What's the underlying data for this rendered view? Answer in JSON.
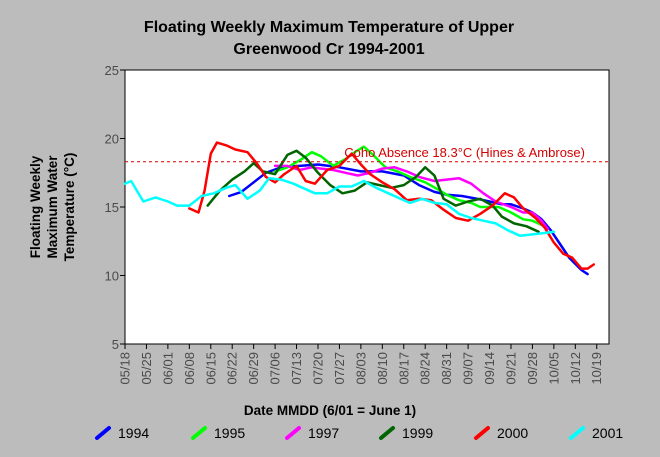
{
  "chart_data": {
    "type": "line",
    "title": [
      "Floating Weekly Maximum Temperature of Upper",
      "Greenwood Cr 1994-2001"
    ],
    "xlabel": "Date MMDD (6/01 = June 1)",
    "ylabel": [
      "Floating Weekly",
      "Maximum Water",
      "Temperature (°C)"
    ],
    "ylim": [
      5,
      25
    ],
    "yticks": [
      5,
      10,
      15,
      20,
      25
    ],
    "xlim": [
      "05/18",
      "10/23"
    ],
    "xticks": [
      "05/18",
      "05/25",
      "06/01",
      "06/08",
      "06/15",
      "06/22",
      "06/29",
      "07/06",
      "07/13",
      "07/20",
      "07/27",
      "08/03",
      "08/10",
      "08/17",
      "08/24",
      "08/31",
      "09/07",
      "09/14",
      "09/21",
      "09/28",
      "10/05",
      "10/12",
      "10/19"
    ],
    "grid": false,
    "legend_position": "bottom",
    "reference_line": {
      "y": 18.3,
      "label": "Coho Absence 18.3°C (Hines & Ambrose)",
      "color": "#d40000"
    },
    "series": [
      {
        "name": "1994",
        "color": "#0000ff",
        "points": [
          [
            "06/21",
            15.8
          ],
          [
            "06/25",
            16.1
          ],
          [
            "06/29",
            16.8
          ],
          [
            "07/03",
            17.5
          ],
          [
            "07/08",
            17.9
          ],
          [
            "07/14",
            18.0
          ],
          [
            "07/20",
            18.1
          ],
          [
            "07/27",
            17.9
          ],
          [
            "08/03",
            17.6
          ],
          [
            "08/10",
            17.6
          ],
          [
            "08/17",
            17.3
          ],
          [
            "08/22",
            16.6
          ],
          [
            "08/27",
            16.1
          ],
          [
            "08/31",
            15.9
          ],
          [
            "09/05",
            15.8
          ],
          [
            "09/10",
            15.6
          ],
          [
            "09/14",
            15.4
          ],
          [
            "09/18",
            15.2
          ],
          [
            "09/21",
            15.2
          ],
          [
            "09/25",
            14.9
          ],
          [
            "09/28",
            14.6
          ],
          [
            "10/01",
            14.1
          ],
          [
            "10/04",
            13.3
          ],
          [
            "10/07",
            12.3
          ],
          [
            "10/10",
            11.3
          ],
          [
            "10/14",
            10.4
          ],
          [
            "10/16",
            10.1
          ]
        ]
      },
      {
        "name": "1995",
        "color": "#00ff00",
        "points": [
          [
            "07/06",
            17.6
          ],
          [
            "07/10",
            17.9
          ],
          [
            "07/14",
            18.4
          ],
          [
            "07/18",
            19.0
          ],
          [
            "07/21",
            18.7
          ],
          [
            "07/25",
            18.0
          ],
          [
            "07/29",
            18.5
          ],
          [
            "08/01",
            19.0
          ],
          [
            "08/04",
            19.4
          ],
          [
            "08/07",
            18.8
          ],
          [
            "08/11",
            17.9
          ],
          [
            "08/15",
            17.6
          ],
          [
            "08/19",
            17.2
          ],
          [
            "08/24",
            16.8
          ],
          [
            "08/28",
            16.3
          ],
          [
            "08/31",
            15.9
          ],
          [
            "09/04",
            15.5
          ],
          [
            "09/08",
            15.3
          ],
          [
            "09/11",
            15.0
          ],
          [
            "09/14",
            15.0
          ],
          [
            "09/17",
            15.0
          ],
          [
            "09/21",
            14.6
          ],
          [
            "09/25",
            14.1
          ],
          [
            "09/28",
            14.0
          ],
          [
            "10/02",
            13.6
          ]
        ]
      },
      {
        "name": "1997",
        "color": "#ff00ff",
        "points": [
          [
            "07/06",
            18.0
          ],
          [
            "07/10",
            18.0
          ],
          [
            "07/14",
            17.7
          ],
          [
            "07/18",
            17.9
          ],
          [
            "07/21",
            17.8
          ],
          [
            "07/25",
            17.7
          ],
          [
            "07/29",
            17.5
          ],
          [
            "08/02",
            17.3
          ],
          [
            "08/06",
            17.5
          ],
          [
            "08/10",
            17.8
          ],
          [
            "08/14",
            17.9
          ],
          [
            "08/18",
            17.6
          ],
          [
            "08/22",
            17.2
          ],
          [
            "08/27",
            16.9
          ],
          [
            "08/31",
            17.0
          ],
          [
            "09/04",
            17.1
          ],
          [
            "09/08",
            16.7
          ],
          [
            "09/12",
            16.0
          ],
          [
            "09/16",
            15.4
          ],
          [
            "09/21",
            15.0
          ],
          [
            "09/25",
            14.6
          ],
          [
            "09/28",
            14.6
          ],
          [
            "10/01",
            14.0
          ],
          [
            "10/03",
            13.4
          ]
        ]
      },
      {
        "name": "1999",
        "color": "#006400",
        "points": [
          [
            "06/14",
            15.1
          ],
          [
            "06/18",
            16.2
          ],
          [
            "06/22",
            17.0
          ],
          [
            "06/26",
            17.6
          ],
          [
            "06/29",
            18.2
          ],
          [
            "07/02",
            17.6
          ],
          [
            "07/06",
            17.4
          ],
          [
            "07/10",
            18.8
          ],
          [
            "07/13",
            19.1
          ],
          [
            "07/16",
            18.6
          ],
          [
            "07/20",
            17.5
          ],
          [
            "07/24",
            16.6
          ],
          [
            "07/28",
            16.0
          ],
          [
            "08/01",
            16.2
          ],
          [
            "08/05",
            16.8
          ],
          [
            "08/09",
            16.6
          ],
          [
            "08/13",
            16.4
          ],
          [
            "08/17",
            16.6
          ],
          [
            "08/21",
            17.2
          ],
          [
            "08/24",
            17.9
          ],
          [
            "08/27",
            17.3
          ],
          [
            "08/30",
            15.6
          ],
          [
            "09/03",
            15.1
          ],
          [
            "09/07",
            15.4
          ],
          [
            "09/11",
            15.6
          ],
          [
            "09/15",
            15.1
          ],
          [
            "09/18",
            14.3
          ],
          [
            "09/22",
            13.8
          ],
          [
            "09/26",
            13.6
          ],
          [
            "09/30",
            13.2
          ]
        ]
      },
      {
        "name": "2000",
        "color": "#ff0000",
        "points": [
          [
            "06/08",
            14.9
          ],
          [
            "06/11",
            14.6
          ],
          [
            "06/13",
            16.2
          ],
          [
            "06/15",
            18.9
          ],
          [
            "06/17",
            19.7
          ],
          [
            "06/20",
            19.5
          ],
          [
            "06/23",
            19.2
          ],
          [
            "06/27",
            19.0
          ],
          [
            "06/30",
            18.2
          ],
          [
            "07/03",
            17.2
          ],
          [
            "07/06",
            16.8
          ],
          [
            "07/09",
            17.4
          ],
          [
            "07/13",
            18.0
          ],
          [
            "07/16",
            16.9
          ],
          [
            "07/19",
            16.7
          ],
          [
            "07/23",
            17.7
          ],
          [
            "07/27",
            18.0
          ],
          [
            "07/31",
            18.9
          ],
          [
            "08/03",
            18.1
          ],
          [
            "08/06",
            17.4
          ],
          [
            "08/10",
            16.8
          ],
          [
            "08/14",
            16.3
          ],
          [
            "08/18",
            15.5
          ],
          [
            "08/22",
            15.6
          ],
          [
            "08/26",
            15.5
          ],
          [
            "08/30",
            14.8
          ],
          [
            "09/03",
            14.2
          ],
          [
            "09/07",
            14.0
          ],
          [
            "09/11",
            14.5
          ],
          [
            "09/15",
            15.1
          ],
          [
            "09/19",
            16.0
          ],
          [
            "09/22",
            15.7
          ],
          [
            "09/25",
            14.9
          ],
          [
            "09/29",
            14.2
          ],
          [
            "10/02",
            13.5
          ],
          [
            "10/05",
            12.4
          ],
          [
            "10/08",
            11.6
          ],
          [
            "10/11",
            11.3
          ],
          [
            "10/14",
            10.5
          ],
          [
            "10/16",
            10.5
          ],
          [
            "10/18",
            10.8
          ]
        ]
      },
      {
        "name": "2001",
        "color": "#00ffff",
        "points": [
          [
            "05/18",
            16.7
          ],
          [
            "05/20",
            16.9
          ],
          [
            "05/24",
            15.4
          ],
          [
            "05/28",
            15.7
          ],
          [
            "06/01",
            15.4
          ],
          [
            "06/04",
            15.1
          ],
          [
            "06/08",
            15.1
          ],
          [
            "06/12",
            15.8
          ],
          [
            "06/16",
            16.0
          ],
          [
            "06/20",
            16.4
          ],
          [
            "06/23",
            16.6
          ],
          [
            "06/27",
            15.6
          ],
          [
            "07/01",
            16.2
          ],
          [
            "07/04",
            17.1
          ],
          [
            "07/08",
            17.0
          ],
          [
            "07/12",
            16.7
          ],
          [
            "07/16",
            16.3
          ],
          [
            "07/19",
            16.0
          ],
          [
            "07/23",
            16.0
          ],
          [
            "07/27",
            16.5
          ],
          [
            "07/31",
            16.5
          ],
          [
            "08/04",
            16.9
          ],
          [
            "08/08",
            16.4
          ],
          [
            "08/12",
            16.0
          ],
          [
            "08/16",
            15.6
          ],
          [
            "08/19",
            15.3
          ],
          [
            "08/23",
            15.6
          ],
          [
            "08/27",
            15.3
          ],
          [
            "08/31",
            15.2
          ],
          [
            "09/04",
            14.5
          ],
          [
            "09/08",
            14.2
          ],
          [
            "09/12",
            14.0
          ],
          [
            "09/16",
            13.8
          ],
          [
            "09/20",
            13.3
          ],
          [
            "09/24",
            12.9
          ],
          [
            "09/28",
            13.0
          ],
          [
            "10/02",
            13.1
          ],
          [
            "10/05",
            13.2
          ]
        ]
      }
    ]
  }
}
